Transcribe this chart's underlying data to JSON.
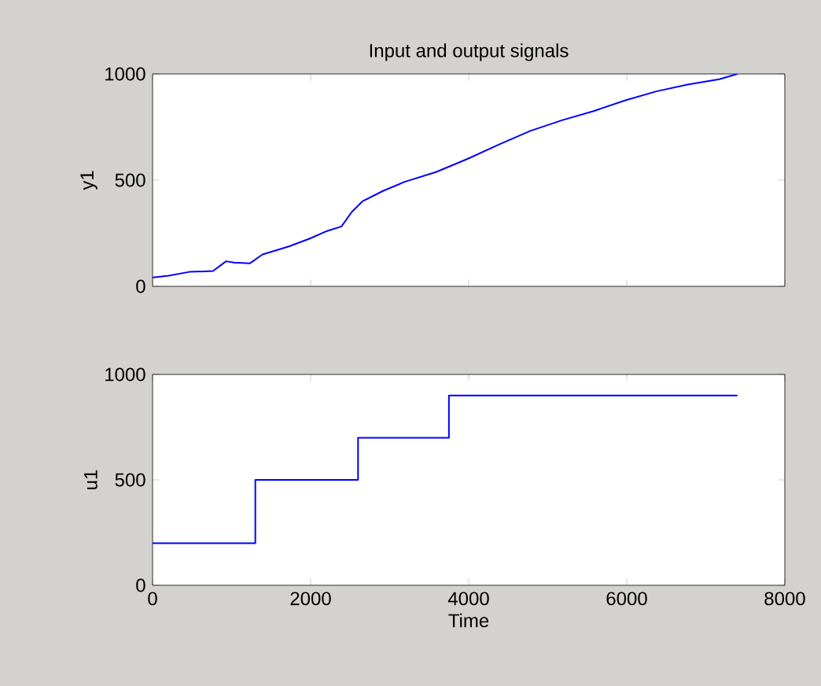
{
  "chart_data": [
    {
      "type": "line",
      "title": "Input and output signals",
      "ylabel": "y1",
      "color": "#0000ff",
      "x": [
        0,
        200,
        465,
        765,
        930,
        1030,
        1230,
        1390,
        1725,
        1990,
        2190,
        2390,
        2520,
        2655,
        2920,
        3190,
        3585,
        3985,
        4385,
        4780,
        5180,
        5580,
        5975,
        6375,
        6770,
        7170,
        7400
      ],
      "values": [
        42,
        50,
        68,
        72,
        118,
        112,
        108,
        150,
        188,
        225,
        258,
        282,
        350,
        400,
        450,
        492,
        538,
        600,
        668,
        732,
        782,
        825,
        875,
        918,
        950,
        975,
        1000
      ],
      "xlim": [
        0,
        8000
      ],
      "xticks": [
        0,
        2000,
        4000,
        6000,
        8000
      ],
      "ylim": [
        0,
        1000
      ],
      "yticks": [
        0,
        500,
        1000
      ],
      "tick_labels": "y"
    },
    {
      "type": "step",
      "xlabel": "Time",
      "ylabel": "u1",
      "color": "#0000ff",
      "x": [
        0,
        1300,
        2600,
        3750,
        7400
      ],
      "values": [
        200,
        500,
        700,
        900,
        900
      ],
      "xlim": [
        0,
        8000
      ],
      "xticks": [
        0,
        2000,
        4000,
        6000,
        8000
      ],
      "ylim": [
        0,
        1000
      ],
      "yticks": [
        0,
        500,
        1000
      ]
    }
  ]
}
